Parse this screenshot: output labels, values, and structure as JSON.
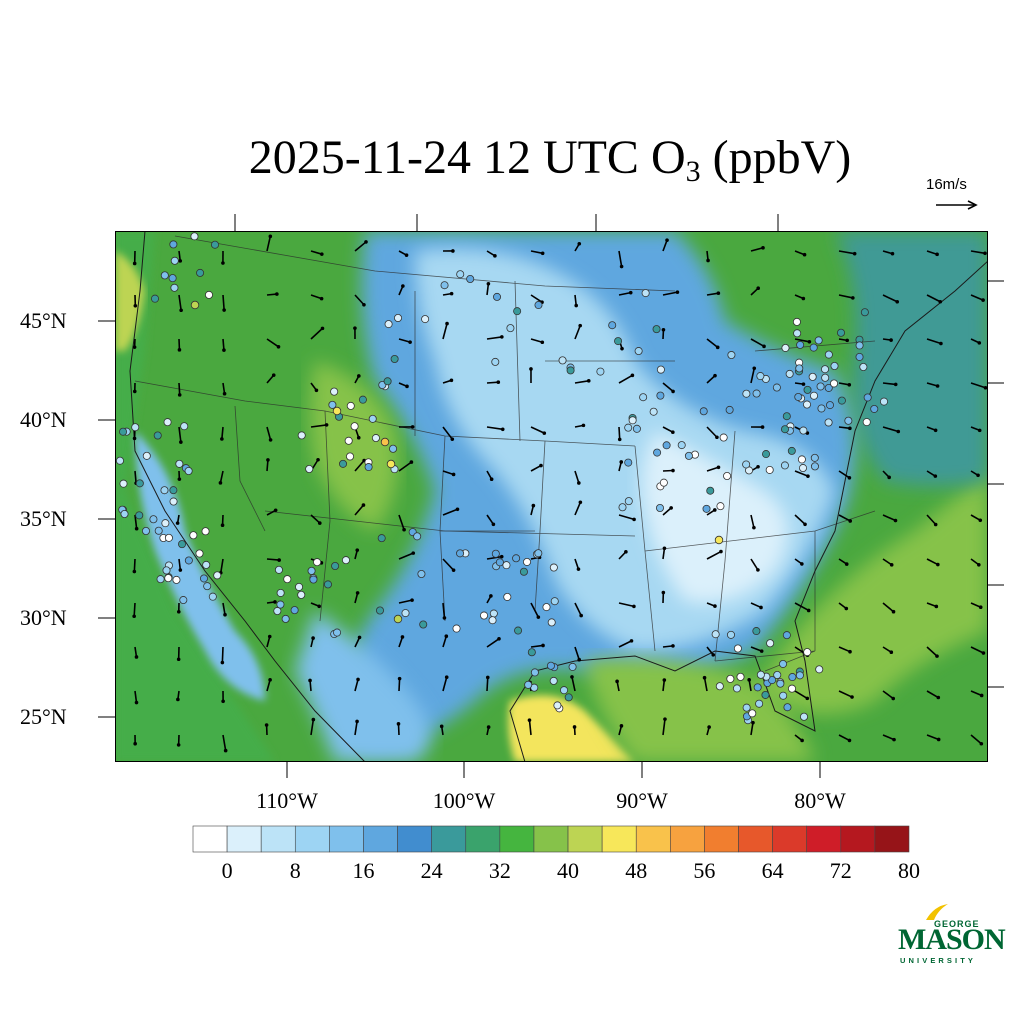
{
  "title": {
    "prefix": "2025-11-24 12 UTC O",
    "subscript": "3",
    "suffix": " (ppbV)"
  },
  "reference_vector": {
    "label": "16m/s"
  },
  "map": {
    "variable": "O3",
    "units": "ppbV",
    "region": "Contiguous United States",
    "lat_ticks": [
      "45°N",
      "40°N",
      "35°N",
      "30°N",
      "25°N"
    ],
    "lon_ticks": [
      "110°W",
      "100°W",
      "90°W",
      "80°W"
    ],
    "colors": {
      "land_background": "#4aa83f",
      "low_ozone": "#a7d8f2",
      "plume": "#f3e55d",
      "ocean_teal": "#3f9a95"
    }
  },
  "colorbar": {
    "labels": [
      "0",
      "8",
      "16",
      "24",
      "32",
      "40",
      "48",
      "56",
      "64",
      "72",
      "80"
    ],
    "colors": [
      "#ffffff",
      "#dbf0fb",
      "#bce3f7",
      "#9dd4f3",
      "#7fc0ec",
      "#5fa7df",
      "#418dcf",
      "#3a9a9b",
      "#3aa36c",
      "#45b53f",
      "#86c24a",
      "#bdd453",
      "#f7e75a",
      "#f9c24b",
      "#f7a23f",
      "#f17e2f",
      "#e7582b",
      "#db3a2a",
      "#cf1d28",
      "#b5181f",
      "#961418"
    ]
  },
  "logo": {
    "line1": "GEORGE",
    "line2": "MASON",
    "line3": "UNIVERSITY"
  }
}
